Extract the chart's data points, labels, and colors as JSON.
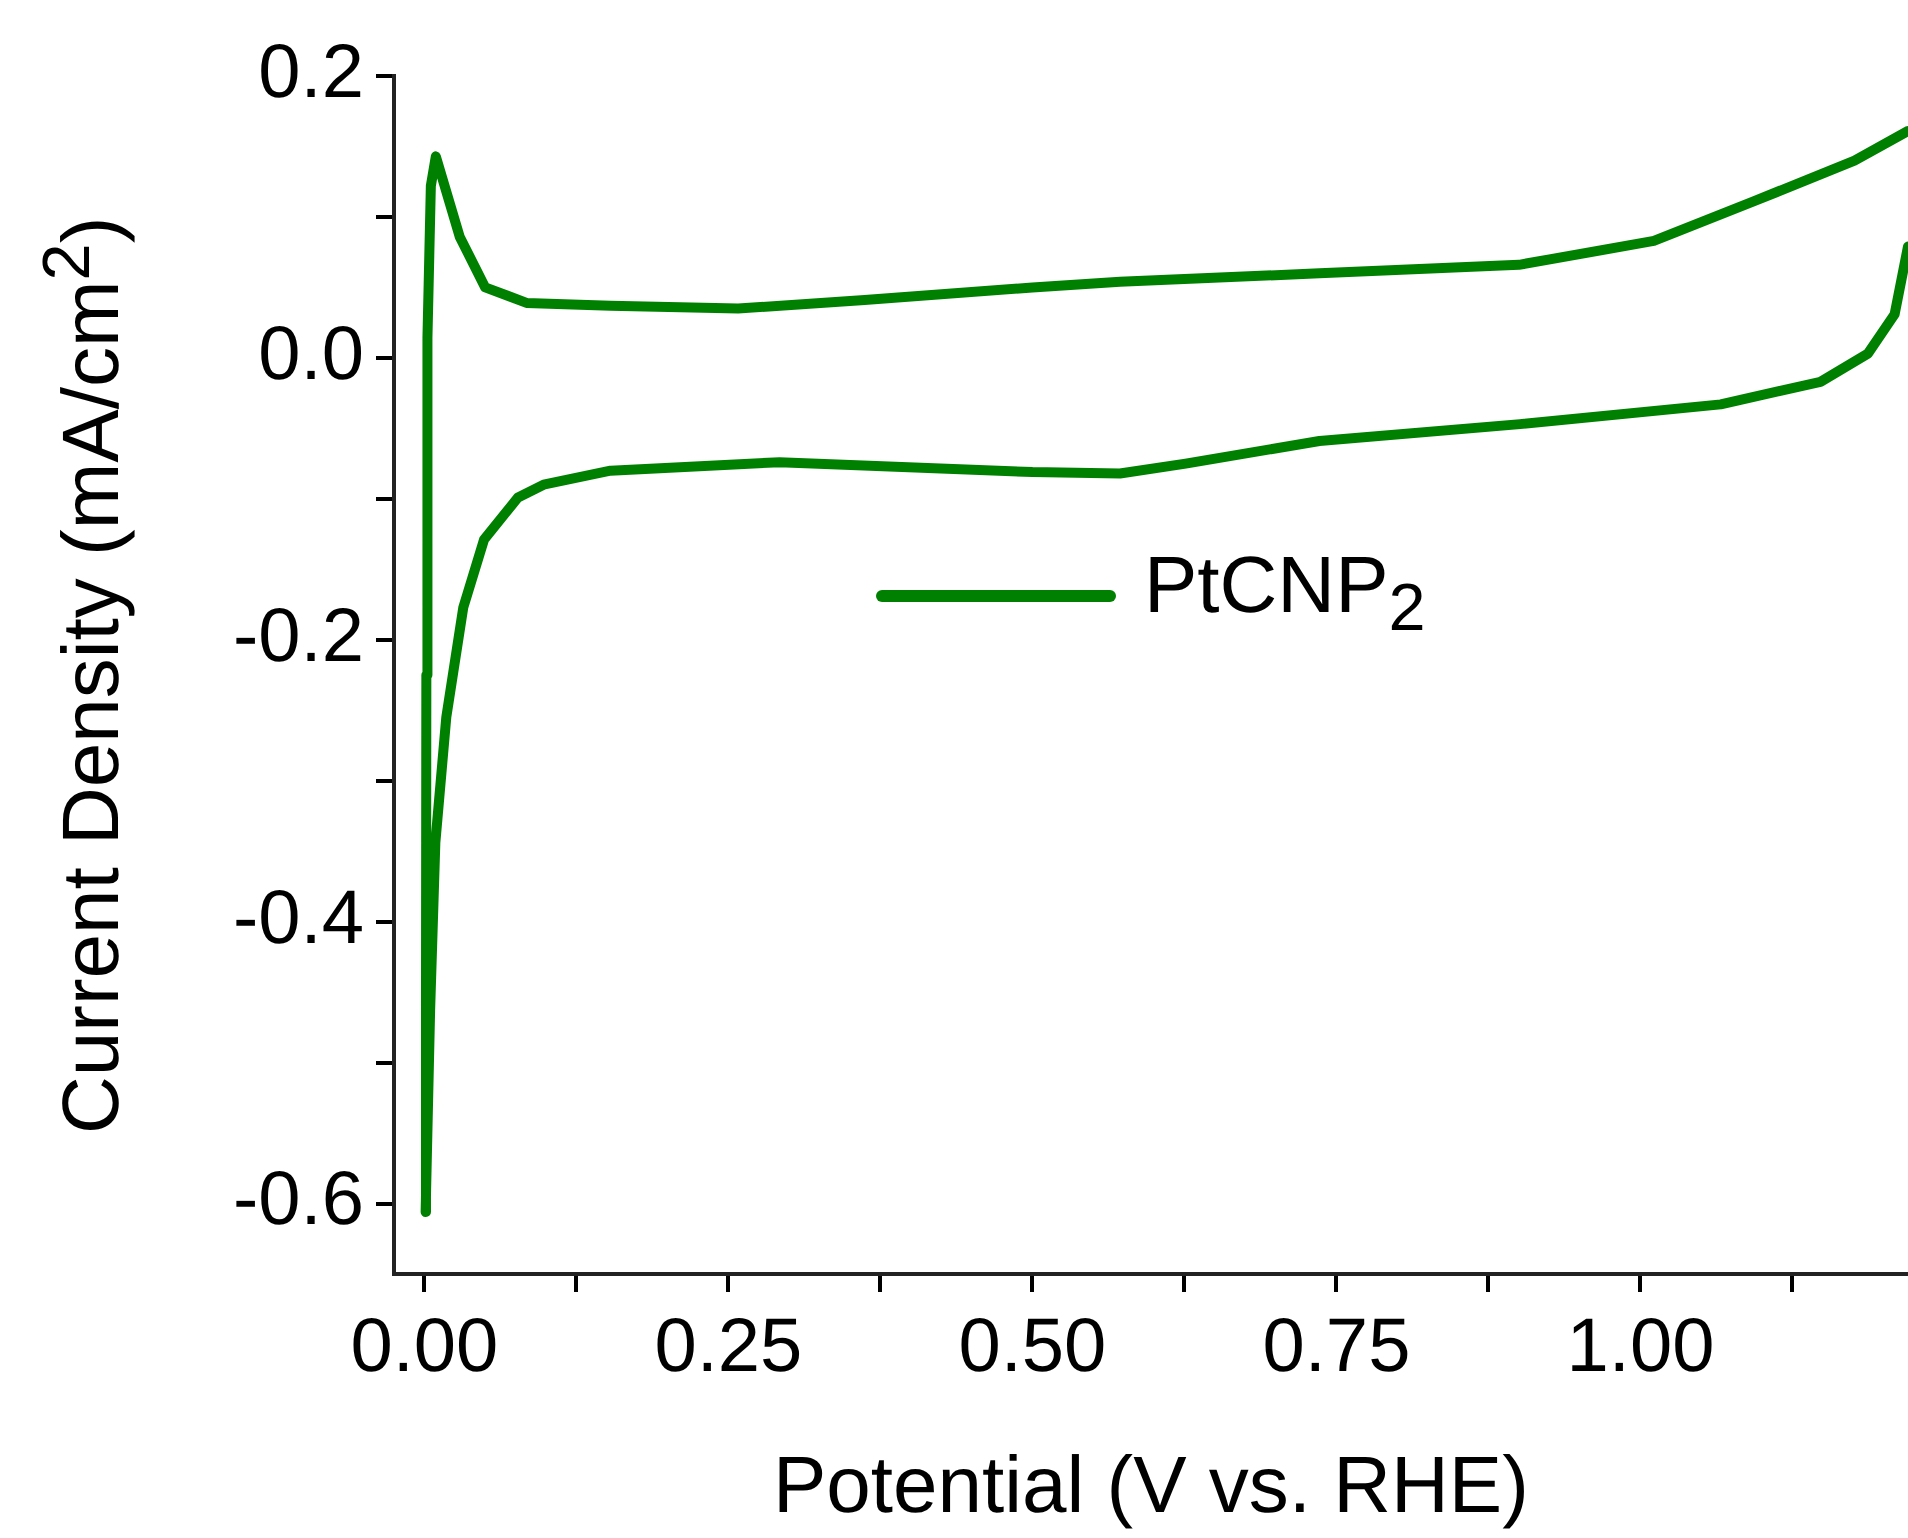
{
  "chart_data": {
    "type": "line",
    "xlabel": "Potential (V vs. RHE)",
    "ylabel": "Current Density (mA/cm$^{2}$)",
    "xlim": [
      -0.025,
      1.22
    ],
    "ylim": [
      -0.65,
      0.2
    ],
    "xticks": [
      {
        "value": 0,
        "label": "0.00"
      },
      {
        "value": 0.125,
        "label": null
      },
      {
        "value": 0.25,
        "label": "0.25"
      },
      {
        "value": 0.375,
        "label": null
      },
      {
        "value": 0.5,
        "label": "0.50"
      },
      {
        "value": 0.625,
        "label": null
      },
      {
        "value": 0.75,
        "label": "0.75"
      },
      {
        "value": 0.875,
        "label": null
      },
      {
        "value": 1,
        "label": "1.00"
      },
      {
        "value": 1.125,
        "label": null
      }
    ],
    "yticks": [
      {
        "value": -0.6,
        "label": "-0.6"
      },
      {
        "value": -0.5,
        "label": null
      },
      {
        "value": -0.4,
        "label": "-0.4"
      },
      {
        "value": -0.3,
        "label": null
      },
      {
        "value": -0.2,
        "label": "-0.2"
      },
      {
        "value": -0.1,
        "label": null
      },
      {
        "value": 0,
        "label": "0.0"
      },
      {
        "value": 0.1,
        "label": null
      },
      {
        "value": 0.2,
        "label": "0.2"
      }
    ],
    "grid": false,
    "legend": "center",
    "marker": "none",
    "line_style": "solid",
    "series": [
      {
        "name": "PtCNP$_{2}$",
        "color": "#008000",
        "x": [
          1.22,
          1.209,
          1.187,
          1.148,
          1.066,
          0.901,
          0.736,
          0.626,
          0.572,
          0.5,
          0.292,
          0.153,
          0.098,
          0.077,
          0.049,
          0.032,
          0.018,
          0.009,
          0.0047,
          0.001,
          0.0013,
          0.0016,
          0.0025,
          0.0053,
          0.0094,
          0.029,
          0.05,
          0.084,
          0.153,
          0.258,
          0.362,
          0.5,
          0.572,
          0.736,
          0.9,
          1.011,
          1.093,
          1.176,
          1.22
        ],
        "values": [
          0.079,
          0.031,
          0.003,
          -0.017,
          -0.033,
          -0.047,
          -0.059,
          -0.075,
          -0.082,
          -0.081,
          -0.074,
          -0.08,
          -0.09,
          -0.099,
          -0.129,
          -0.177,
          -0.255,
          -0.344,
          -0.463,
          -0.606,
          -0.46,
          -0.225,
          0.014,
          0.122,
          0.143,
          0.086,
          0.05,
          0.039,
          0.037,
          0.035,
          0.041,
          0.05,
          0.054,
          0.06,
          0.066,
          0.083,
          0.111,
          0.14,
          0.161
        ]
      }
    ]
  }
}
